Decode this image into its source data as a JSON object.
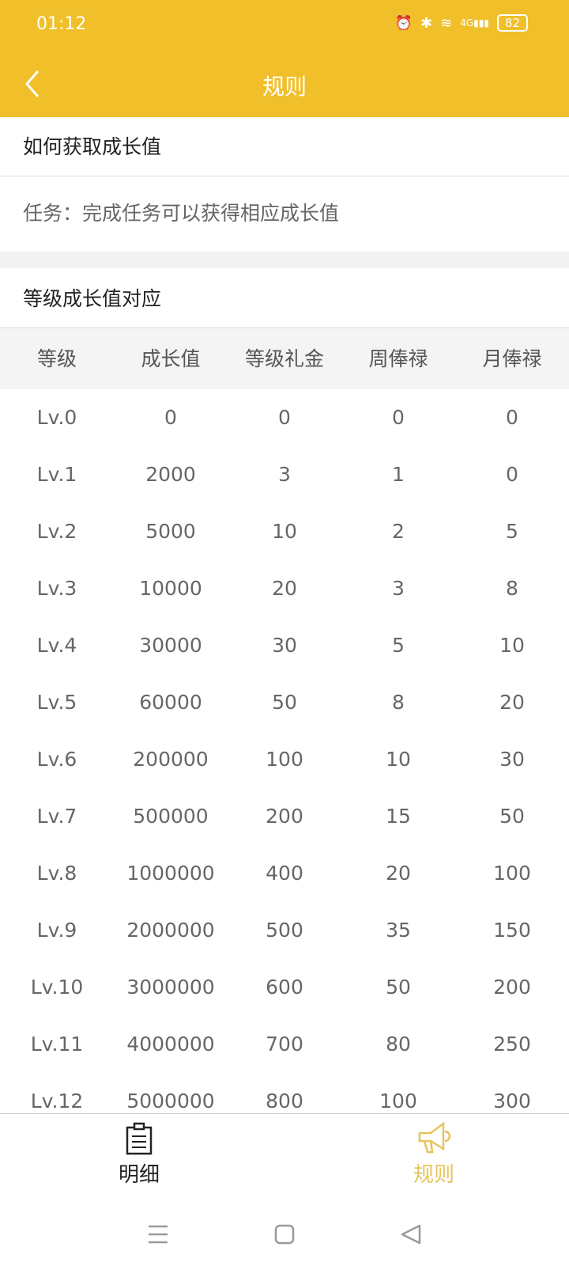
{
  "status_bar": {
    "time": "01:12",
    "battery": "82",
    "network": "4G"
  },
  "header": {
    "title": "规则"
  },
  "section1": {
    "title": "如何获取成长值",
    "text": "任务：完成任务可以获得相应成长值"
  },
  "section2": {
    "title": "等级成长值对应"
  },
  "table": {
    "columns": [
      "等级",
      "成长值",
      "等级礼金",
      "周俸禄",
      "月俸禄"
    ],
    "rows": [
      [
        "Lv.0",
        "0",
        "0",
        "0",
        "0"
      ],
      [
        "Lv.1",
        "2000",
        "3",
        "1",
        "0"
      ],
      [
        "Lv.2",
        "5000",
        "10",
        "2",
        "5"
      ],
      [
        "Lv.3",
        "10000",
        "20",
        "3",
        "8"
      ],
      [
        "Lv.4",
        "30000",
        "30",
        "5",
        "10"
      ],
      [
        "Lv.5",
        "60000",
        "50",
        "8",
        "20"
      ],
      [
        "Lv.6",
        "200000",
        "100",
        "10",
        "30"
      ],
      [
        "Lv.7",
        "500000",
        "200",
        "15",
        "50"
      ],
      [
        "Lv.8",
        "1000000",
        "400",
        "20",
        "100"
      ],
      [
        "Lv.9",
        "2000000",
        "500",
        "35",
        "150"
      ],
      [
        "Lv.10",
        "3000000",
        "600",
        "50",
        "200"
      ],
      [
        "Lv.11",
        "4000000",
        "700",
        "80",
        "250"
      ],
      [
        "Lv.12",
        "5000000",
        "800",
        "100",
        "300"
      ]
    ]
  },
  "bottom_nav": {
    "items": [
      {
        "label": "明细",
        "icon": "clipboard-icon"
      },
      {
        "label": "规则",
        "icon": "megaphone-icon",
        "active": true
      }
    ]
  },
  "colors": {
    "accent": "#F0BF2A",
    "active_tab": "#E6C45A"
  }
}
